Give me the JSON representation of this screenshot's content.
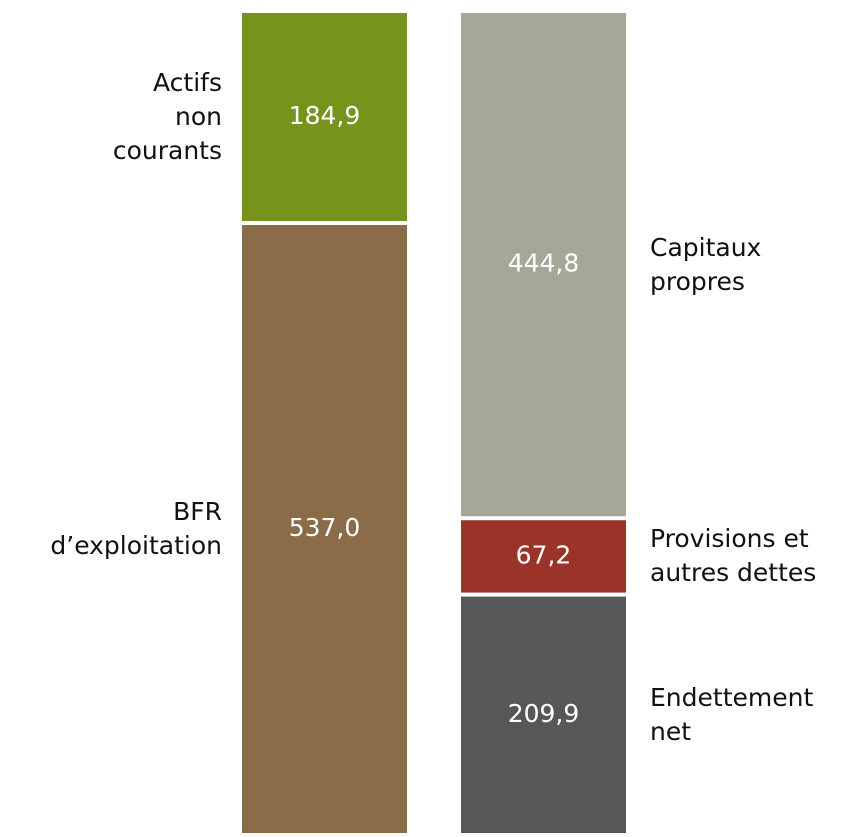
{
  "chart_data": {
    "type": "stacked_bar",
    "stacks": [
      {
        "segments": [
          {
            "name": "Actifs\nnon\ncourants",
            "value": 184.9,
            "value_label": "184,9",
            "color": "#76941b"
          },
          {
            "name": "BFR\nd’exploitation",
            "value": 537.0,
            "value_label": "537,0",
            "color": "#8b6c48"
          }
        ],
        "label_side": "left"
      },
      {
        "segments": [
          {
            "name": "Capitaux\npropres",
            "value": 444.8,
            "value_label": "444,8",
            "color": "#a7a797"
          },
          {
            "name": "Provisions et\nautres dettes",
            "value": 67.2,
            "value_label": "67,2",
            "color": "#9c3328"
          },
          {
            "name": "Endettement\nnet",
            "value": 209.9,
            "value_label": "209,9",
            "color": "#555759"
          }
        ],
        "label_side": "right"
      }
    ]
  }
}
